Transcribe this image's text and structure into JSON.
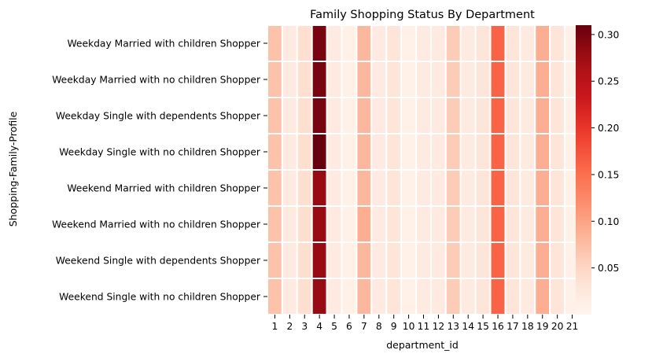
{
  "chart_data": {
    "type": "heatmap",
    "title": "Family Shopping Status By Department",
    "xlabel": "department_id",
    "ylabel": "Shopping-Family-Profile",
    "x_categories": [
      "1",
      "2",
      "3",
      "4",
      "5",
      "6",
      "7",
      "8",
      "9",
      "10",
      "11",
      "12",
      "13",
      "14",
      "15",
      "16",
      "17",
      "18",
      "19",
      "20",
      "21"
    ],
    "y_categories": [
      "Weekday Married with children Shopper",
      "Weekday Married with no children Shopper",
      "Weekday Single with dependents Shopper",
      "Weekday Single with no children Shopper",
      "Weekend Married with children Shopper",
      "Weekend Married with no children Shopper",
      "Weekend Single with dependents Shopper",
      "Weekend Single with no children Shopper"
    ],
    "values": [
      [
        0.07,
        0.02,
        0.04,
        0.3,
        0.02,
        0.01,
        0.08,
        0.02,
        0.03,
        0.01,
        0.02,
        0.02,
        0.06,
        0.02,
        0.03,
        0.16,
        0.03,
        0.02,
        0.09,
        0.03,
        0.01
      ],
      [
        0.07,
        0.02,
        0.04,
        0.3,
        0.02,
        0.01,
        0.08,
        0.02,
        0.03,
        0.01,
        0.02,
        0.02,
        0.06,
        0.02,
        0.03,
        0.16,
        0.03,
        0.02,
        0.09,
        0.03,
        0.01
      ],
      [
        0.07,
        0.02,
        0.04,
        0.3,
        0.02,
        0.01,
        0.08,
        0.02,
        0.03,
        0.01,
        0.02,
        0.02,
        0.06,
        0.02,
        0.03,
        0.16,
        0.03,
        0.02,
        0.09,
        0.03,
        0.01
      ],
      [
        0.07,
        0.02,
        0.04,
        0.31,
        0.02,
        0.01,
        0.08,
        0.02,
        0.03,
        0.01,
        0.02,
        0.02,
        0.06,
        0.02,
        0.03,
        0.16,
        0.03,
        0.02,
        0.09,
        0.03,
        0.01
      ],
      [
        0.07,
        0.02,
        0.04,
        0.28,
        0.02,
        0.01,
        0.08,
        0.02,
        0.03,
        0.01,
        0.02,
        0.02,
        0.06,
        0.02,
        0.03,
        0.16,
        0.03,
        0.02,
        0.09,
        0.03,
        0.01
      ],
      [
        0.07,
        0.02,
        0.04,
        0.28,
        0.02,
        0.01,
        0.09,
        0.02,
        0.03,
        0.01,
        0.02,
        0.02,
        0.06,
        0.02,
        0.03,
        0.16,
        0.03,
        0.02,
        0.09,
        0.03,
        0.01
      ],
      [
        0.07,
        0.02,
        0.04,
        0.28,
        0.02,
        0.01,
        0.08,
        0.02,
        0.03,
        0.01,
        0.02,
        0.02,
        0.06,
        0.02,
        0.03,
        0.16,
        0.03,
        0.02,
        0.09,
        0.03,
        0.01
      ],
      [
        0.07,
        0.02,
        0.04,
        0.28,
        0.02,
        0.01,
        0.08,
        0.02,
        0.03,
        0.01,
        0.02,
        0.02,
        0.06,
        0.02,
        0.03,
        0.16,
        0.03,
        0.02,
        0.09,
        0.03,
        0.01
      ]
    ],
    "colormap": "Reds",
    "vmin": 0.0,
    "vmax": 0.31,
    "colorbar_ticks": [
      "0.05",
      "0.10",
      "0.15",
      "0.20",
      "0.25",
      "0.30"
    ],
    "colorbar_tick_values": [
      0.05,
      0.1,
      0.15,
      0.2,
      0.25,
      0.3
    ],
    "grid": false,
    "cell_separator_color": "#ffffff"
  }
}
